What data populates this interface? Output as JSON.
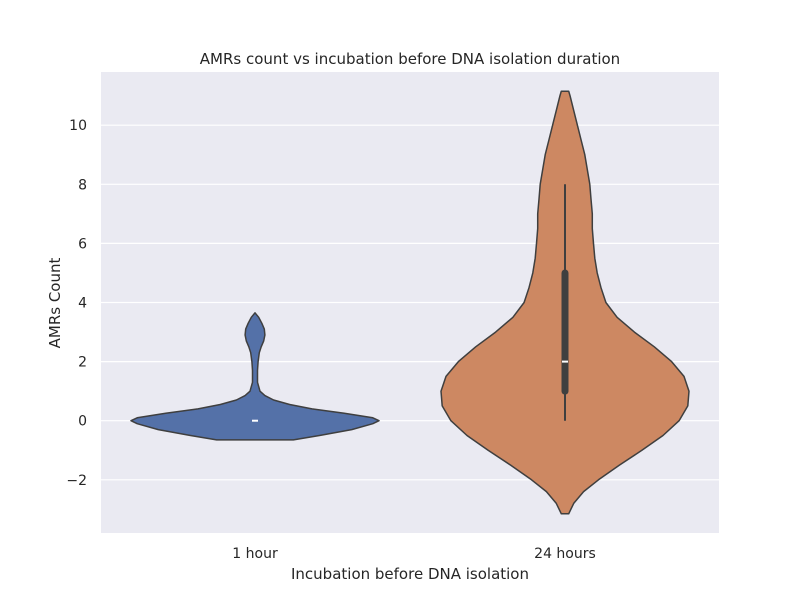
{
  "chart_data": {
    "type": "violin",
    "title": "AMRs count vs incubation before DNA isolation duration",
    "xlabel": "Incubation before DNA isolation",
    "ylabel": "AMRs Count",
    "categories": [
      "1 hour",
      "24 hours"
    ],
    "ylim": [
      -3.8,
      11.8
    ],
    "yticks": [
      -2,
      0,
      2,
      4,
      6,
      8,
      10
    ],
    "ytick_labels": [
      "−2",
      "0",
      "2",
      "4",
      "6",
      "8",
      "10"
    ],
    "grid": true,
    "background_color": "#EAEAF2",
    "violins": [
      {
        "category": "1 hour",
        "color": "#5471A8",
        "min": -0.65,
        "max": 3.65,
        "median": 0,
        "q1": 0,
        "q3": 0,
        "whisker_low": 0,
        "whisker_high": 0,
        "profile": [
          [
            -0.65,
            0.31
          ],
          [
            -0.5,
            0.52
          ],
          [
            -0.3,
            0.78
          ],
          [
            -0.1,
            0.95
          ],
          [
            0.0,
            1.0
          ],
          [
            0.1,
            0.95
          ],
          [
            0.25,
            0.72
          ],
          [
            0.4,
            0.46
          ],
          [
            0.55,
            0.28
          ],
          [
            0.7,
            0.15
          ],
          [
            0.85,
            0.08
          ],
          [
            1.0,
            0.04
          ],
          [
            1.3,
            0.02
          ],
          [
            1.7,
            0.02
          ],
          [
            2.0,
            0.025
          ],
          [
            2.3,
            0.035
          ],
          [
            2.5,
            0.05
          ],
          [
            2.7,
            0.07
          ],
          [
            2.9,
            0.08
          ],
          [
            3.1,
            0.075
          ],
          [
            3.3,
            0.055
          ],
          [
            3.5,
            0.03
          ],
          [
            3.65,
            0.0
          ]
        ]
      },
      {
        "category": "24 hours",
        "color": "#CD8862",
        "min": -3.15,
        "max": 11.15,
        "median": 2,
        "q1": 1,
        "q3": 5,
        "whisker_low": 0,
        "whisker_high": 8,
        "profile": [
          [
            -3.15,
            0.03
          ],
          [
            -2.8,
            0.07
          ],
          [
            -2.4,
            0.15
          ],
          [
            -2.0,
            0.27
          ],
          [
            -1.5,
            0.44
          ],
          [
            -1.0,
            0.62
          ],
          [
            -0.5,
            0.79
          ],
          [
            0.0,
            0.92
          ],
          [
            0.5,
            0.99
          ],
          [
            1.0,
            1.0
          ],
          [
            1.5,
            0.96
          ],
          [
            2.0,
            0.86
          ],
          [
            2.5,
            0.72
          ],
          [
            3.0,
            0.56
          ],
          [
            3.5,
            0.42
          ],
          [
            4.0,
            0.33
          ],
          [
            4.5,
            0.29
          ],
          [
            5.0,
            0.26
          ],
          [
            5.5,
            0.24
          ],
          [
            6.0,
            0.23
          ],
          [
            6.5,
            0.22
          ],
          [
            7.0,
            0.22
          ],
          [
            7.5,
            0.21
          ],
          [
            8.0,
            0.2
          ],
          [
            8.5,
            0.18
          ],
          [
            9.0,
            0.16
          ],
          [
            9.5,
            0.13
          ],
          [
            10.0,
            0.1
          ],
          [
            10.5,
            0.07
          ],
          [
            11.0,
            0.04
          ],
          [
            11.15,
            0.03
          ]
        ]
      }
    ]
  }
}
